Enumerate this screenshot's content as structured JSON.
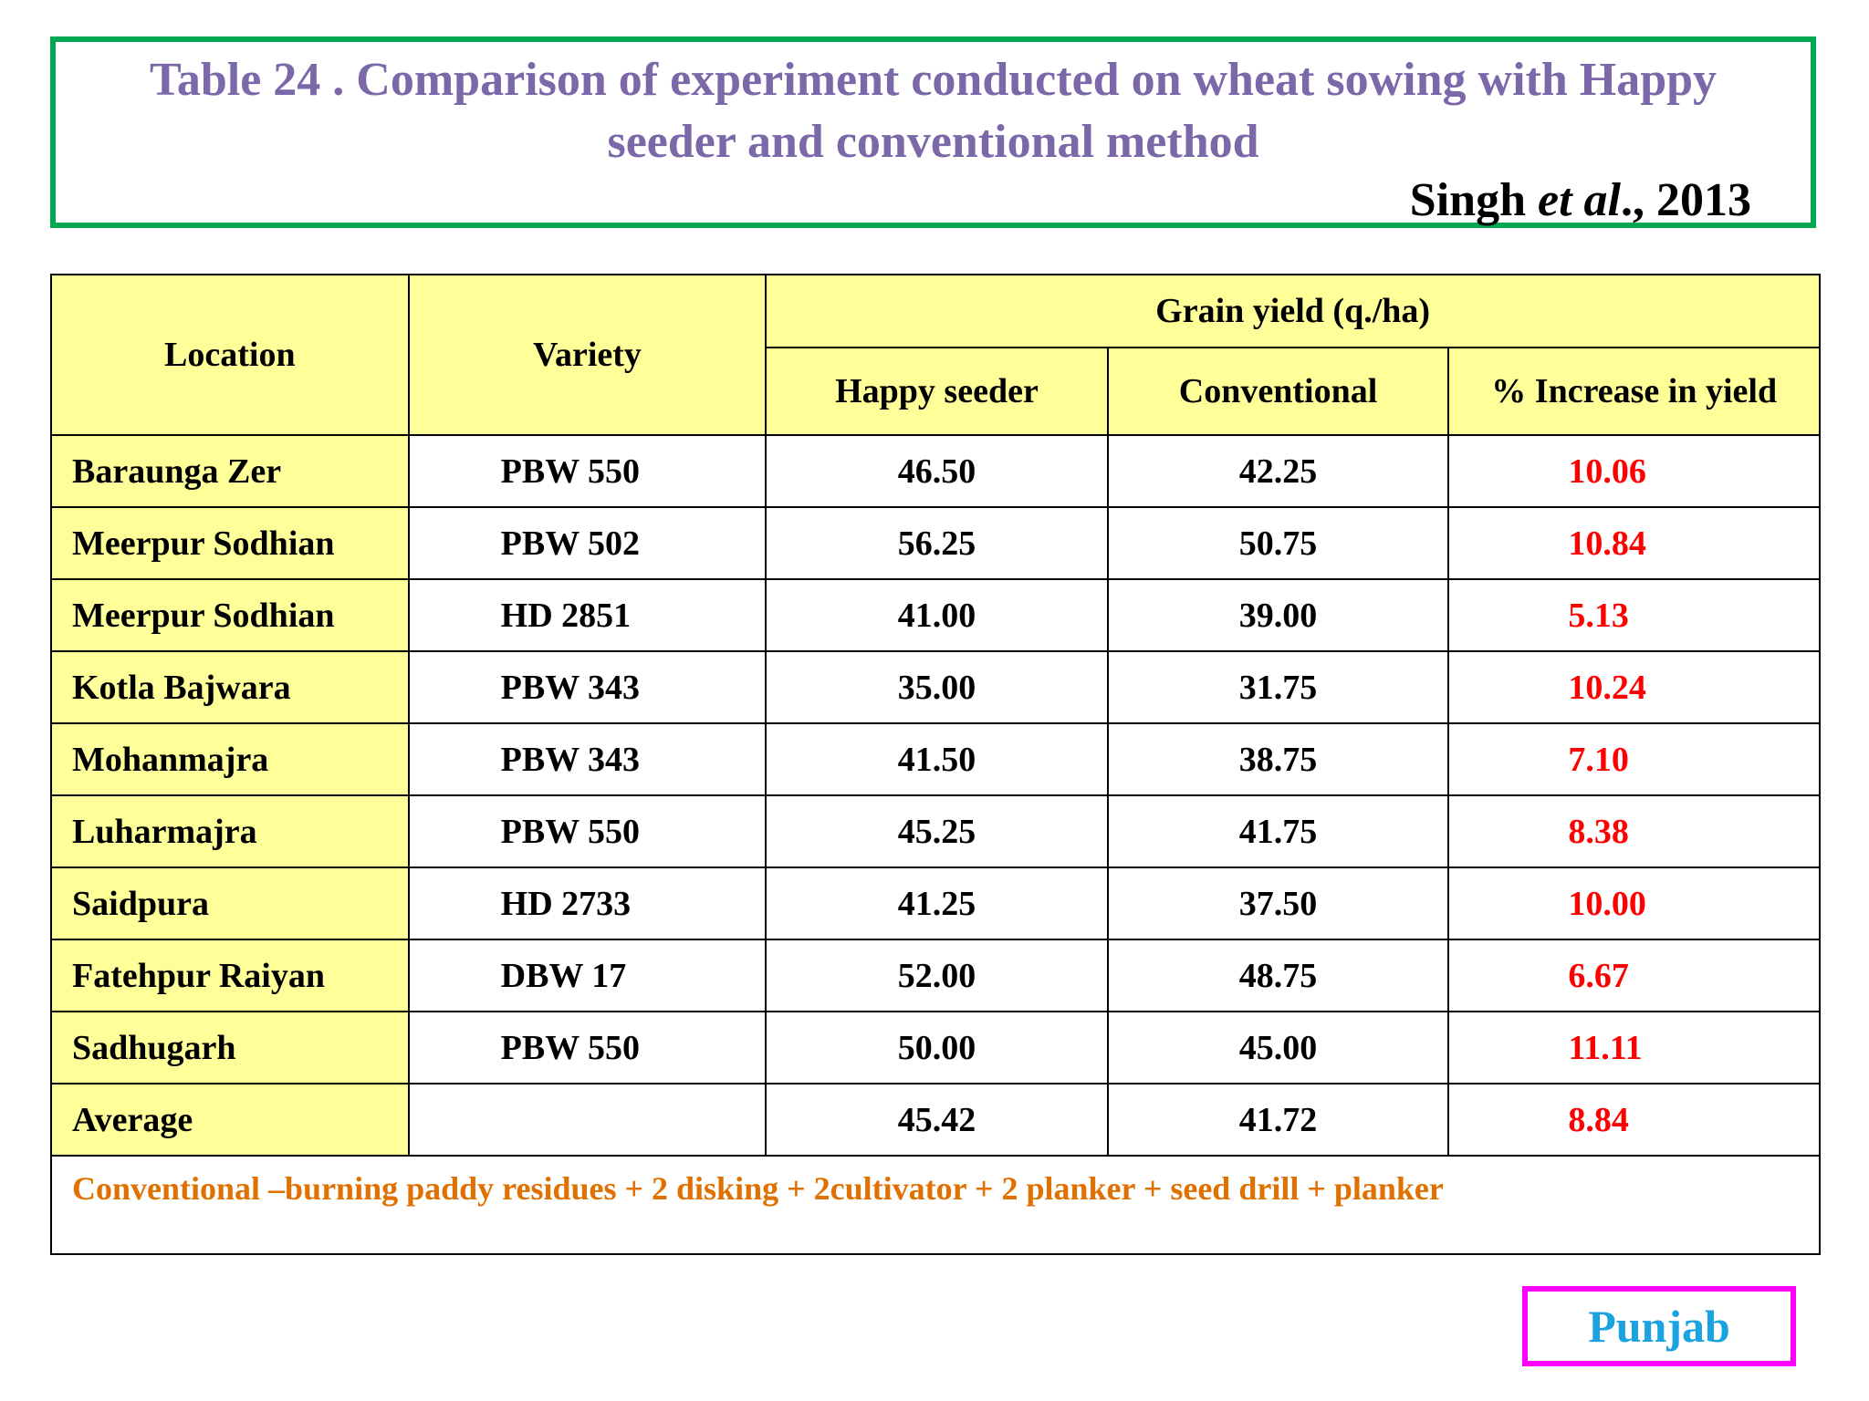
{
  "title": {
    "line1": "Table 24 . Comparison of experiment conducted on wheat sowing with Happy",
    "line2": "seeder and conventional method",
    "citation_author": "Singh",
    "citation_etal": "et al",
    "citation_suffix": "., 2013"
  },
  "table": {
    "headers": {
      "location": "Location",
      "variety": "Variety",
      "group": "Grain yield (q./ha)",
      "happy_seeder": "Happy seeder",
      "conventional": "Conventional",
      "increase": "%  Increase in yield"
    },
    "rows": [
      {
        "location": "Baraunga Zer",
        "variety": "PBW 550",
        "happy": "46.50",
        "conv": "42.25",
        "increase": "10.06"
      },
      {
        "location": "Meerpur Sodhian",
        "variety": "PBW 502",
        "happy": "56.25",
        "conv": "50.75",
        "increase": "10.84"
      },
      {
        "location": "Meerpur Sodhian",
        "variety": "HD 2851",
        "happy": "41.00",
        "conv": "39.00",
        "increase": "5.13"
      },
      {
        "location": "Kotla Bajwara",
        "variety": "PBW 343",
        "happy": "35.00",
        "conv": "31.75",
        "increase": "10.24"
      },
      {
        "location": "Mohanmajra",
        "variety": "PBW 343",
        "happy": "41.50",
        "conv": "38.75",
        "increase": "7.10"
      },
      {
        "location": "Luharmajra",
        "variety": "PBW 550",
        "happy": "45.25",
        "conv": "41.75",
        "increase": "8.38"
      },
      {
        "location": "Saidpura",
        "variety": "HD 2733",
        "happy": "41.25",
        "conv": "37.50",
        "increase": "10.00"
      },
      {
        "location": "Fatehpur Raiyan",
        "variety": "DBW 17",
        "happy": "52.00",
        "conv": "48.75",
        "increase": "6.67"
      },
      {
        "location": "Sadhugarh",
        "variety": "PBW 550",
        "happy": "50.00",
        "conv": "45.00",
        "increase": "11.11"
      },
      {
        "location": "Average",
        "variety": "",
        "happy": "45.42",
        "conv": "41.72",
        "increase": "8.84"
      }
    ],
    "note": "Conventional –burning paddy residues + 2 disking + 2cultivator + 2 planker + seed drill + planker"
  },
  "region": "Punjab",
  "colors": {
    "title": "#7b68a8",
    "title_border": "#00a651",
    "header_bg": "#ffff99",
    "increase_text": "#ff0000",
    "note_text": "#e07000",
    "region_border": "#ff00ff",
    "region_text": "#1aa3e0"
  }
}
